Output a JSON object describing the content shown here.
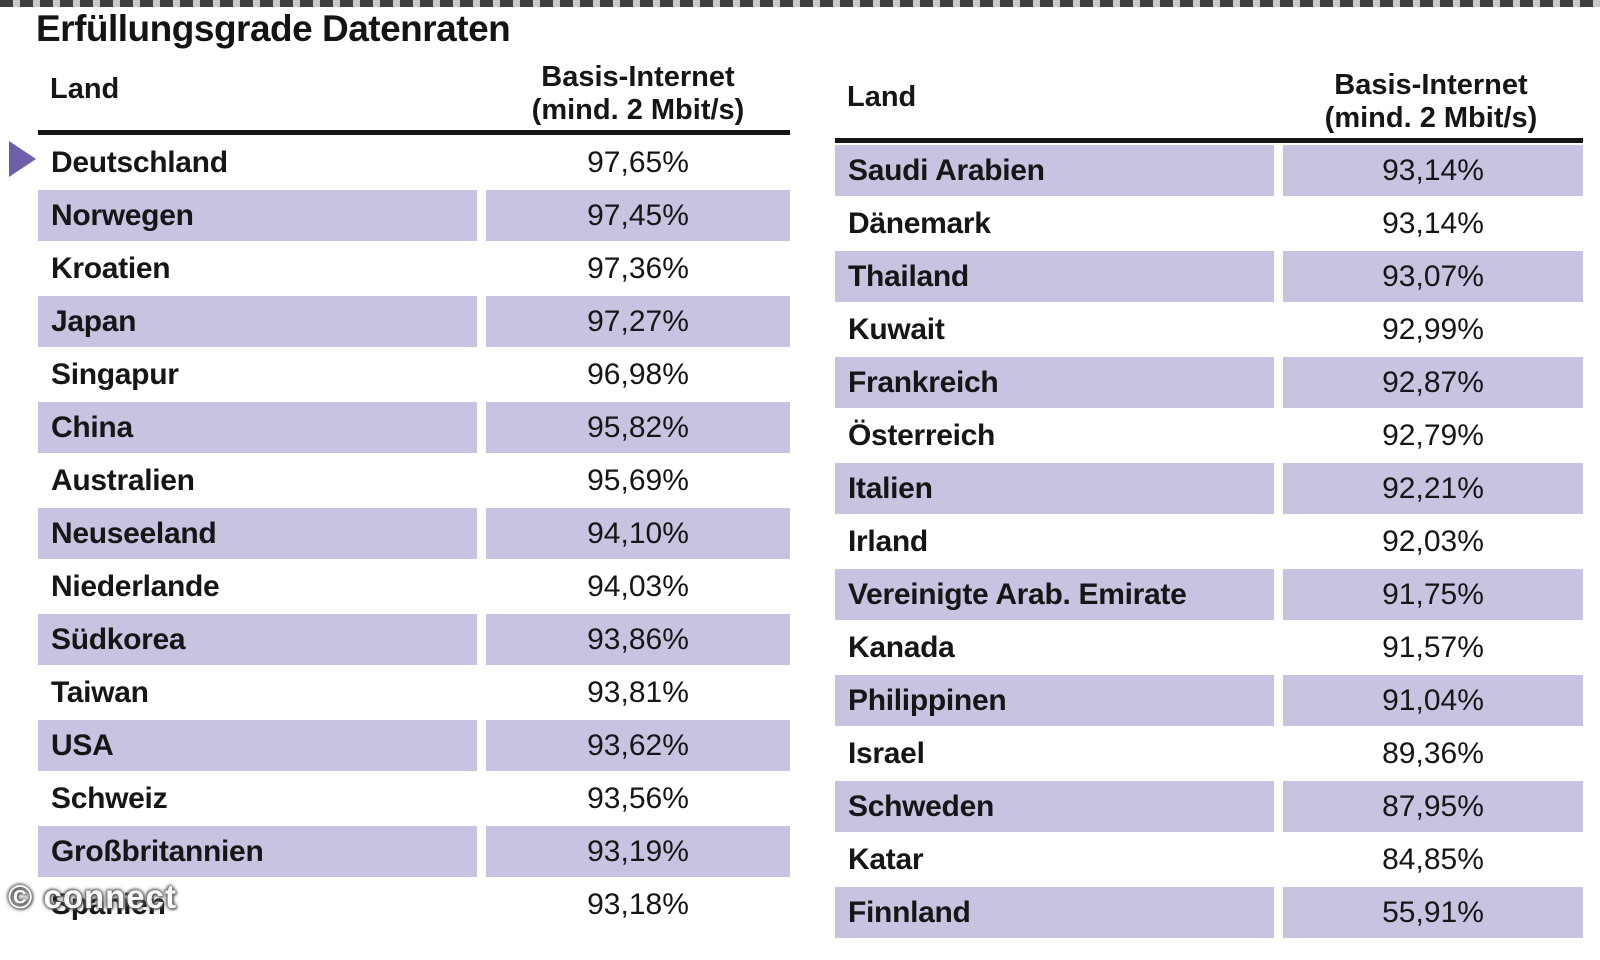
{
  "page": {
    "title": "Erfüllungsgrade Datenraten",
    "watermark": "© connect"
  },
  "header": {
    "land_label": "Land",
    "value_label_line1": "Basis-Internet",
    "value_label_line2": "(mind. 2 Mbit/s)"
  },
  "colors": {
    "row_highlight": "#c7c3e1",
    "marker_arrow": "#6e5fa8",
    "text": "#161616"
  },
  "chart_data": {
    "type": "table",
    "title": "Erfüllungsgrade Datenraten",
    "columns": [
      "Land",
      "Basis-Internet (mind. 2 Mbit/s)"
    ],
    "tables": [
      {
        "rows": [
          {
            "land": "Deutschland",
            "value": "97,65%",
            "highlighted": false,
            "marker": true
          },
          {
            "land": "Norwegen",
            "value": "97,45%",
            "highlighted": true,
            "marker": false
          },
          {
            "land": "Kroatien",
            "value": "97,36%",
            "highlighted": false,
            "marker": false
          },
          {
            "land": "Japan",
            "value": "97,27%",
            "highlighted": true,
            "marker": false
          },
          {
            "land": "Singapur",
            "value": "96,98%",
            "highlighted": false,
            "marker": false
          },
          {
            "land": "China",
            "value": "95,82%",
            "highlighted": true,
            "marker": false
          },
          {
            "land": "Australien",
            "value": "95,69%",
            "highlighted": false,
            "marker": false
          },
          {
            "land": "Neuseeland",
            "value": "94,10%",
            "highlighted": true,
            "marker": false
          },
          {
            "land": "Niederlande",
            "value": "94,03%",
            "highlighted": false,
            "marker": false
          },
          {
            "land": "Südkorea",
            "value": "93,86%",
            "highlighted": true,
            "marker": false
          },
          {
            "land": "Taiwan",
            "value": "93,81%",
            "highlighted": false,
            "marker": false
          },
          {
            "land": "USA",
            "value": "93,62%",
            "highlighted": true,
            "marker": false
          },
          {
            "land": "Schweiz",
            "value": "93,56%",
            "highlighted": false,
            "marker": false
          },
          {
            "land": "Großbritannien",
            "value": "93,19%",
            "highlighted": true,
            "marker": false
          },
          {
            "land": "Spanien",
            "value": "93,18%",
            "highlighted": false,
            "marker": false
          }
        ]
      },
      {
        "rows": [
          {
            "land": "Saudi Arabien",
            "value": "93,14%",
            "highlighted": true,
            "marker": false
          },
          {
            "land": "Dänemark",
            "value": "93,14%",
            "highlighted": false,
            "marker": false
          },
          {
            "land": "Thailand",
            "value": "93,07%",
            "highlighted": true,
            "marker": false
          },
          {
            "land": "Kuwait",
            "value": "92,99%",
            "highlighted": false,
            "marker": false
          },
          {
            "land": "Frankreich",
            "value": "92,87%",
            "highlighted": true,
            "marker": false
          },
          {
            "land": "Österreich",
            "value": "92,79%",
            "highlighted": false,
            "marker": false
          },
          {
            "land": "Italien",
            "value": "92,21%",
            "highlighted": true,
            "marker": false
          },
          {
            "land": "Irland",
            "value": "92,03%",
            "highlighted": false,
            "marker": false
          },
          {
            "land": "Vereinigte Arab. Emirate",
            "value": "91,75%",
            "highlighted": true,
            "marker": false
          },
          {
            "land": "Kanada",
            "value": "91,57%",
            "highlighted": false,
            "marker": false
          },
          {
            "land": "Philippinen",
            "value": "91,04%",
            "highlighted": true,
            "marker": false
          },
          {
            "land": "Israel",
            "value": "89,36%",
            "highlighted": false,
            "marker": false
          },
          {
            "land": "Schweden",
            "value": "87,95%",
            "highlighted": true,
            "marker": false
          },
          {
            "land": "Katar",
            "value": "84,85%",
            "highlighted": false,
            "marker": false
          },
          {
            "land": "Finnland",
            "value": "55,91%",
            "highlighted": true,
            "marker": false
          }
        ]
      }
    ]
  }
}
